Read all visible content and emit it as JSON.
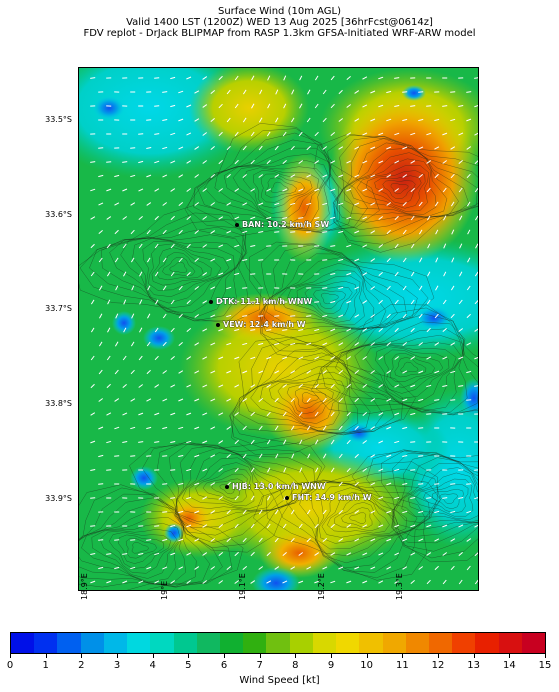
{
  "title": {
    "line1": "Surface Wind (10m AGL)",
    "line2": "Valid 1400 LST (1200Z) WED 13 Aug 2025 [36hrFcst@0614z]",
    "line3": "FDV replot - DrJack BLIPMAP from RASP 1.3km GFSA-Initiated WRF-ARW model"
  },
  "map": {
    "lat_labels": [
      "33.5°S",
      "33.6°S",
      "33.7°S",
      "33.8°S",
      "33.9°S"
    ],
    "lon_labels": [
      "18.9°E",
      "19°E",
      "19.1°E",
      "19.2°E",
      "19.3°E"
    ],
    "stations": [
      {
        "label": "BAN: 10.2 km/h SW"
      },
      {
        "label": "DTK: 11.1 km/h WNW"
      },
      {
        "label": "VEW: 12.4 km/h W"
      },
      {
        "label": "HJB: 13.0 km/h WNW"
      },
      {
        "label": "FHT: 14.9 km/h W"
      }
    ]
  },
  "colorbar": {
    "label": "Wind Speed [kt]",
    "ticks": [
      "0",
      "1",
      "2",
      "3",
      "4",
      "5",
      "6",
      "7",
      "8",
      "9",
      "10",
      "11",
      "12",
      "13",
      "14",
      "15"
    ],
    "colors": [
      "#0010e8",
      "#0030f0",
      "#0060f0",
      "#0090e8",
      "#00b8e8",
      "#00d8e0",
      "#00d8c0",
      "#00c890",
      "#10b860",
      "#10b030",
      "#30b010",
      "#70c010",
      "#a8d000",
      "#d8d800",
      "#f0d800",
      "#f0c000",
      "#f0a800",
      "#f08800",
      "#f06800",
      "#f04000",
      "#e82000",
      "#d81010",
      "#c80020"
    ]
  }
}
